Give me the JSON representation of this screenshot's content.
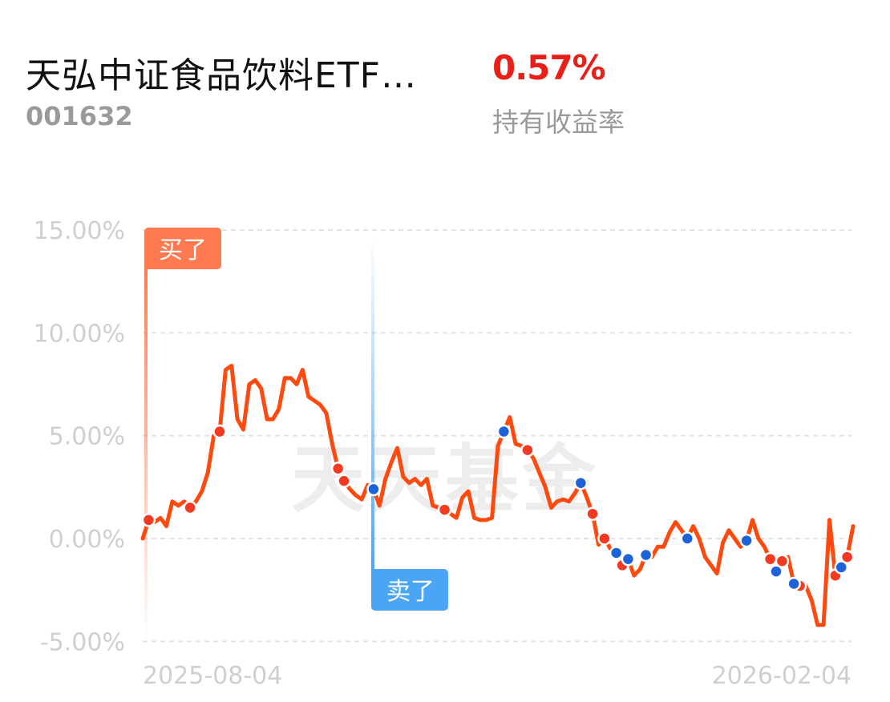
{
  "header": {
    "fund_name": "天弘中证食品饮料ETF…",
    "fund_code": "001632",
    "return_value": "0.57%",
    "return_label": "持有收益率"
  },
  "watermark": "天天基金",
  "colors": {
    "line": "#ff4a0f",
    "buy_marker": "#f23a22",
    "sell_marker": "#1e62d8",
    "buy_tag": "#ff7a50",
    "sell_tag": "#4aa6f5",
    "grid": "#e3e3e3",
    "axis_text": "#cfcfcf",
    "positive": "#e8201a"
  },
  "chart_data": {
    "type": "line",
    "title": "",
    "xlabel": "",
    "ylabel": "",
    "ylim": [
      -5,
      15
    ],
    "yticks": [
      15,
      10,
      5,
      0,
      -5
    ],
    "ytick_labels": [
      "15.00%",
      "10.00%",
      "5.00%",
      "0.00%",
      "-5.00%"
    ],
    "x_start_label": "2025-08-04",
    "x_end_label": "2026-02-04",
    "grid": true,
    "series": [
      {
        "values": [
          0.0,
          0.9,
          0.8,
          1.0,
          0.6,
          1.8,
          1.6,
          1.8,
          1.5,
          1.8,
          2.3,
          3.2,
          5.0,
          5.2,
          8.2,
          8.4,
          5.8,
          5.3,
          7.5,
          7.7,
          7.3,
          5.8,
          5.8,
          6.3,
          7.8,
          7.8,
          7.5,
          8.2,
          6.9,
          6.7,
          6.5,
          6.1,
          4.6,
          3.4,
          2.8,
          2.4,
          2.1,
          1.9,
          2.6,
          2.4,
          1.6,
          2.9,
          3.7,
          4.4,
          3.0,
          2.7,
          2.9,
          2.6,
          2.9,
          1.6,
          1.5,
          1.4,
          1.2,
          1.0,
          2.0,
          2.3,
          1.0,
          0.9,
          0.9,
          1.0,
          4.5,
          5.2,
          5.9,
          4.6,
          4.5,
          4.3,
          3.9,
          3.2,
          2.5,
          1.5,
          1.8,
          1.9,
          1.8,
          2.2,
          2.7,
          2.0,
          1.2,
          -0.3,
          0.0,
          -0.5,
          -0.7,
          -1.3,
          -1.0,
          -1.8,
          -1.5,
          -0.8,
          -0.9,
          -0.4,
          -0.4,
          0.3,
          0.8,
          0.4,
          0.0,
          0.6,
          0.0,
          -0.9,
          -1.3,
          -1.7,
          -0.2,
          0.4,
          0.0,
          -0.4,
          -0.1,
          0.9,
          0.0,
          -0.4,
          -1.0,
          -1.6,
          -1.1,
          -0.9,
          -2.2,
          -2.3,
          -2.3,
          -3.0,
          -4.2,
          -4.2,
          0.9,
          -1.8,
          -1.4,
          -0.9,
          0.6
        ]
      }
    ],
    "buy_points": [
      1,
      8,
      13,
      33,
      34,
      51,
      65,
      76,
      78,
      81,
      106,
      108,
      111,
      117,
      119
    ],
    "sell_points": [
      39,
      61,
      74,
      80,
      82,
      85,
      92,
      102,
      107,
      110,
      118
    ],
    "buy_marker": {
      "label": "买了",
      "index": 0
    },
    "sell_marker": {
      "label": "卖了",
      "index": 39
    }
  }
}
